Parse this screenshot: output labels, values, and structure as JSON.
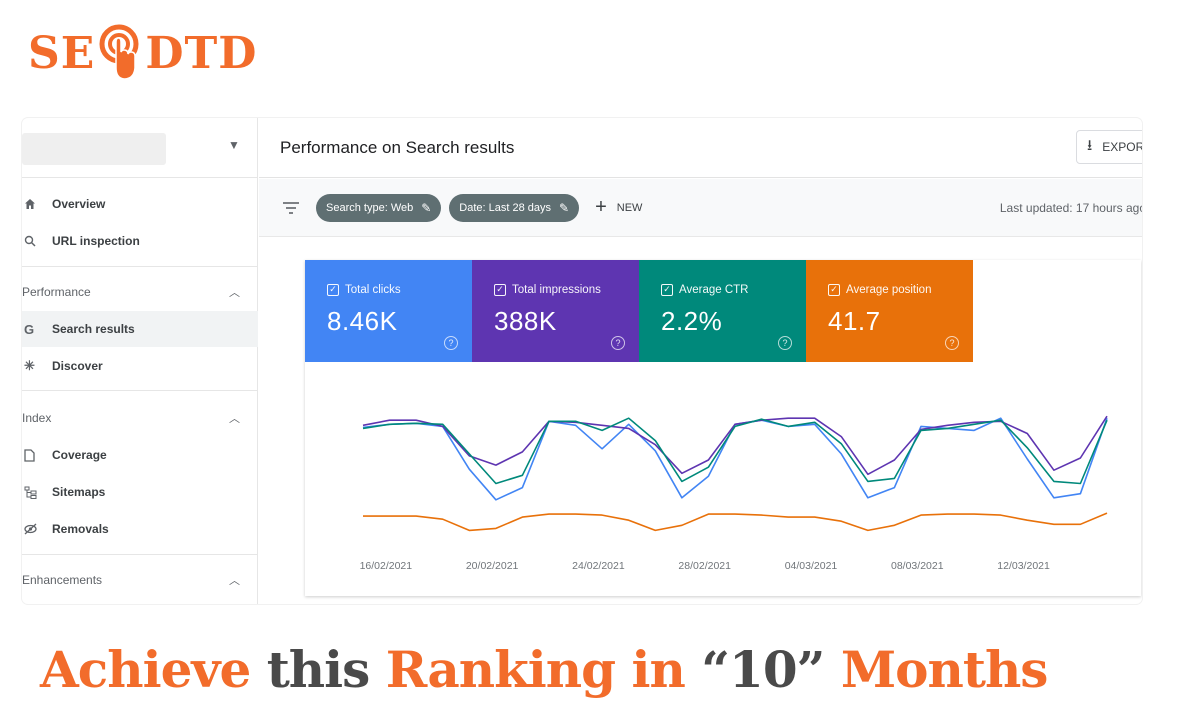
{
  "brand": {
    "name_left": "SE",
    "name_right": "DTD",
    "color": "#f26c2b",
    "icon": "pointer-hand-icon"
  },
  "sidebar": {
    "items": [
      {
        "label": "Overview",
        "icon": "home-icon"
      },
      {
        "label": "URL inspection",
        "icon": "search-icon"
      }
    ],
    "sections": [
      {
        "label": "Performance",
        "items": [
          {
            "label": "Search results",
            "icon": "google-g-icon",
            "active": true
          },
          {
            "label": "Discover",
            "icon": "asterisk-icon"
          }
        ]
      },
      {
        "label": "Index",
        "items": [
          {
            "label": "Coverage",
            "icon": "file-icon"
          },
          {
            "label": "Sitemaps",
            "icon": "sitemap-icon"
          },
          {
            "label": "Removals",
            "icon": "eye-off-icon"
          }
        ]
      },
      {
        "label": "Enhancements",
        "items": []
      }
    ]
  },
  "header": {
    "title": "Performance on Search results",
    "export_label": "EXPORT"
  },
  "filters": {
    "chips": [
      {
        "label": "Search type: Web"
      },
      {
        "label": "Date: Last 28 days"
      }
    ],
    "new_label": "NEW",
    "last_updated": "Last updated: 17 hours ago"
  },
  "metrics": [
    {
      "label": "Total clicks",
      "value": "8.46K",
      "color": "#4285f4"
    },
    {
      "label": "Total impressions",
      "value": "388K",
      "color": "#5e35b1"
    },
    {
      "label": "Average CTR",
      "value": "2.2%",
      "color": "#00897b"
    },
    {
      "label": "Average position",
      "value": "41.7",
      "color": "#e8710a"
    }
  ],
  "chart_data": {
    "type": "line",
    "title": "",
    "x": [
      "15/02/2021",
      "16/02/2021",
      "17/02/2021",
      "18/02/2021",
      "19/02/2021",
      "20/02/2021",
      "21/02/2021",
      "22/02/2021",
      "23/02/2021",
      "24/02/2021",
      "25/02/2021",
      "26/02/2021",
      "27/02/2021",
      "28/02/2021",
      "01/03/2021",
      "02/03/2021",
      "03/03/2021",
      "04/03/2021",
      "05/03/2021",
      "06/03/2021",
      "07/03/2021",
      "08/03/2021",
      "09/03/2021",
      "10/03/2021",
      "11/03/2021",
      "12/03/2021",
      "13/03/2021",
      "14/03/2021",
      "15/03/2021"
    ],
    "tick_labels": [
      "16/02/2021",
      "20/02/2021",
      "24/02/2021",
      "28/02/2021",
      "04/03/2021",
      "08/03/2021",
      "12/03/2021"
    ],
    "ylim": [
      0,
      100
    ],
    "series": [
      {
        "name": "Total clicks",
        "color": "#4285f4",
        "values": [
          81,
          84,
          85,
          82,
          40,
          10,
          22,
          87,
          83,
          60,
          84,
          58,
          12,
          33,
          84,
          88,
          82,
          84,
          55,
          12,
          22,
          82,
          80,
          78,
          90,
          50,
          12,
          16,
          90
        ]
      },
      {
        "name": "Total impressions",
        "color": "#5e35b1",
        "values": [
          83,
          88,
          88,
          82,
          53,
          44,
          57,
          87,
          86,
          83,
          80,
          64,
          36,
          49,
          84,
          88,
          90,
          90,
          72,
          35,
          49,
          79,
          83,
          86,
          87,
          75,
          39,
          51,
          92
        ]
      },
      {
        "name": "Average CTR",
        "color": "#00897b",
        "values": [
          80,
          84,
          85,
          84,
          55,
          26,
          34,
          87,
          87,
          78,
          90,
          68,
          28,
          42,
          82,
          89,
          82,
          86,
          65,
          28,
          31,
          78,
          80,
          84,
          88,
          61,
          28,
          26,
          88
        ]
      },
      {
        "name": "Average position",
        "color": "#e8710a",
        "values": [
          -6,
          -6,
          -6,
          -9,
          -20,
          -18,
          -7,
          -4,
          -4,
          -5,
          -10,
          -20,
          -15,
          -4,
          -4,
          -5,
          -7,
          -7,
          -11,
          -20,
          -15,
          -5,
          -4,
          -4,
          -5,
          -10,
          -14,
          -14,
          -3
        ]
      }
    ]
  },
  "headline": {
    "part1": "Achieve",
    "part2": "this",
    "part3": "Ranking in",
    "part4": "“10”",
    "part5": "Months"
  }
}
